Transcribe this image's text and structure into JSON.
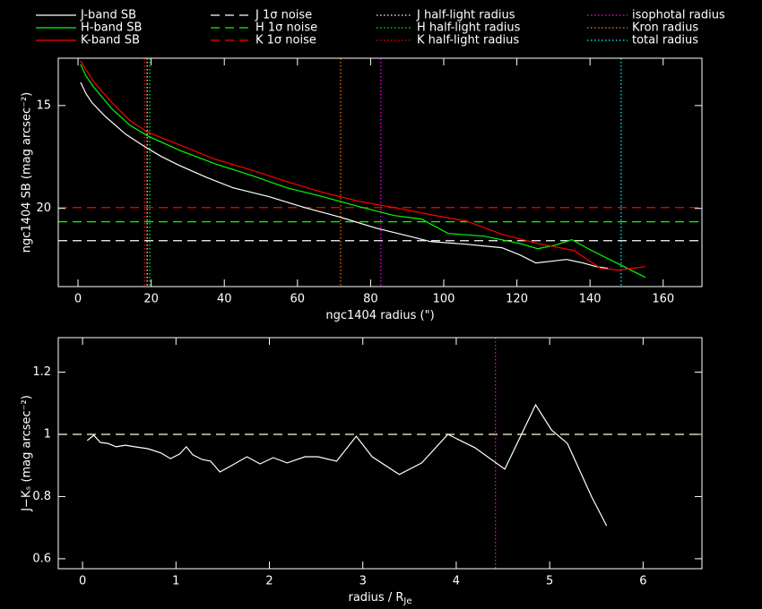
{
  "chart_data": [
    {
      "type": "line",
      "xlabel": "ngc1404 radius (\")",
      "ylabel": "ngc1404 SB (mag arcsec⁻²)",
      "xlim": [
        -5.4,
        170.6
      ],
      "ylim": [
        23.8,
        12.7
      ],
      "xticks": [
        0,
        20,
        40,
        60,
        80,
        100,
        120,
        140,
        160
      ],
      "yticks": [
        15,
        20
      ],
      "series": [
        {
          "name": "J-band SB",
          "color": "#ffffff",
          "x": [
            0.7,
            2.2,
            3.9,
            7.4,
            13.0,
            17.9,
            22.8,
            27.7,
            35.0,
            42.4,
            52.2,
            62.0,
            71.8,
            81.6,
            91.4,
            96.3,
            106.1,
            115.9,
            120.8,
            125.2,
            129.4,
            133.6,
            138.0,
            141.7,
            144.9
          ],
          "values": [
            13.87,
            14.43,
            14.87,
            15.52,
            16.39,
            16.96,
            17.48,
            17.91,
            18.48,
            19.0,
            19.43,
            19.96,
            20.43,
            20.96,
            21.39,
            21.61,
            21.74,
            21.91,
            22.26,
            22.65,
            22.57,
            22.48,
            22.65,
            22.83,
            22.91
          ]
        },
        {
          "name": "H-band SB",
          "color": "#00ff00",
          "x": [
            0.7,
            2.2,
            4.4,
            9.3,
            14.2,
            19.1,
            27.7,
            37.5,
            47.3,
            57.1,
            66.9,
            76.7,
            86.5,
            93.9,
            101.2,
            111.0,
            120.8,
            125.7,
            130.6,
            135.0,
            140.4,
            147.8,
            155.1
          ],
          "values": [
            13.0,
            13.57,
            14.13,
            15.17,
            15.96,
            16.48,
            17.17,
            17.83,
            18.39,
            19.0,
            19.43,
            19.91,
            20.35,
            20.52,
            21.22,
            21.35,
            21.7,
            21.96,
            21.78,
            21.52,
            22.04,
            22.7,
            23.35
          ]
        },
        {
          "name": "K-band SB",
          "color": "#ff0000",
          "x": [
            0.7,
            2.2,
            4.4,
            9.3,
            14.2,
            19.1,
            27.7,
            37.5,
            47.3,
            57.1,
            66.9,
            76.7,
            86.5,
            96.3,
            106.1,
            115.9,
            125.7,
            135.5,
            142.9,
            147.8,
            155.1
          ],
          "values": [
            12.83,
            13.26,
            13.87,
            14.87,
            15.74,
            16.3,
            16.91,
            17.61,
            18.13,
            18.7,
            19.22,
            19.65,
            19.96,
            20.3,
            20.61,
            21.26,
            21.7,
            22.04,
            22.91,
            23.0,
            22.83
          ]
        }
      ],
      "hlines": [
        {
          "name": "J 1σ noise",
          "color": "#ffffff",
          "value": 21.57,
          "line_style": "dashed"
        },
        {
          "name": "H 1σ noise",
          "color": "#00ff00",
          "value": 20.65,
          "line_style": "dashed"
        },
        {
          "name": "K 1σ noise",
          "color": "#ff0000",
          "value": 19.96,
          "line_style": "dashed"
        }
      ],
      "vlines": [
        {
          "name": "J half-light radius",
          "color": "#ffffff",
          "value": 18.9,
          "line_style": "dotted"
        },
        {
          "name": "H half-light radius",
          "color": "#00ff00",
          "value": 19.6,
          "line_style": "dotted"
        },
        {
          "name": "K half-light radius",
          "color": "#ff0000",
          "value": 18.2,
          "line_style": "dotted"
        },
        {
          "name": "isophotal radius",
          "color": "#ff00ff",
          "value": 82.8,
          "line_style": "dotted"
        },
        {
          "name": "Kron radius",
          "color": "#ff8000",
          "value": 71.8,
          "line_style": "dotted"
        },
        {
          "name": "total radius",
          "color": "#00ffff",
          "value": 148.5,
          "line_style": "dotted"
        }
      ]
    },
    {
      "type": "line",
      "xlabel": "radius / R",
      "xlabel_subscript": "Je",
      "ylabel": "J−Kₛ (mag arcsec⁻²)",
      "xlim": [
        -0.26,
        6.63
      ],
      "ylim": [
        0.568,
        1.311
      ],
      "xticks": [
        0,
        1,
        2,
        3,
        4,
        5,
        6
      ],
      "yticks": [
        0.6,
        0.8,
        1,
        1.2
      ],
      "series": [
        {
          "color": "#ffffff",
          "x": [
            0.05,
            0.12,
            0.19,
            0.27,
            0.36,
            0.46,
            0.56,
            0.7,
            0.84,
            0.94,
            1.04,
            1.11,
            1.18,
            1.28,
            1.37,
            1.47,
            1.59,
            1.76,
            1.9,
            2.04,
            2.19,
            2.38,
            2.52,
            2.72,
            2.93,
            3.1,
            3.39,
            3.63,
            3.91,
            4.2,
            4.52,
            4.85,
            5.02,
            5.19,
            5.45,
            5.61
          ],
          "values": [
            0.98,
            0.997,
            0.974,
            0.971,
            0.96,
            0.965,
            0.96,
            0.954,
            0.94,
            0.922,
            0.937,
            0.96,
            0.934,
            0.919,
            0.914,
            0.879,
            0.899,
            0.928,
            0.905,
            0.925,
            0.908,
            0.928,
            0.928,
            0.914,
            0.994,
            0.928,
            0.871,
            0.908,
            1.0,
            0.957,
            0.888,
            1.095,
            1.014,
            0.971,
            0.799,
            0.706
          ]
        }
      ],
      "hlines": [
        {
          "color": "#ffffcc",
          "value": 1,
          "line_style": "dashed"
        }
      ],
      "vlines": [
        {
          "color": "#ff00ff",
          "value": 4.42,
          "line_style": "dotted"
        }
      ]
    }
  ]
}
